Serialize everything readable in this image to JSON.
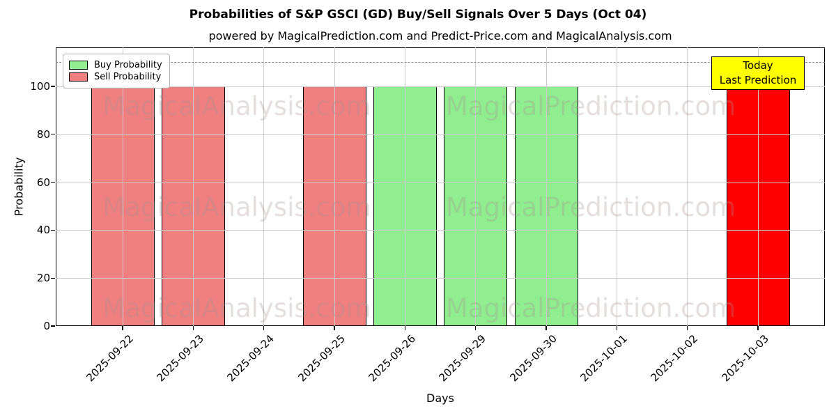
{
  "title": "Probabilities of S&P GSCI (GD) Buy/Sell Signals Over 5 Days (Oct 04)",
  "subtitle": "powered by MagicalPrediction.com and Predict-Price.com and MagicalAnalysis.com",
  "watermarks": {
    "left": "MagicalAnalysis.com",
    "right": "MagicalPrediction.com"
  },
  "legend": [
    {
      "label": "Buy Probability",
      "color": "#90ee90"
    },
    {
      "label": "Sell Probability",
      "color": "#f08080"
    }
  ],
  "annotation": {
    "line1": "Today",
    "line2": "Last Prediction",
    "bg_color": "#ffff00"
  },
  "colors": {
    "buy": "#90ee90",
    "sell": "#f08080",
    "today": "#ff0000",
    "grid": "#cccccc",
    "dashed_line": "#8a8a8a",
    "bar_edge": "#000000"
  },
  "chart_data": {
    "type": "bar",
    "title": "Probabilities of S&P GSCI (GD) Buy/Sell Signals Over 5 Days (Oct 04)",
    "subtitle": "powered by MagicalPrediction.com and Predict-Price.com and MagicalAnalysis.com",
    "xlabel": "Days",
    "ylabel": "Probability",
    "ylim": [
      0,
      116.3
    ],
    "yticks": [
      0,
      20,
      40,
      60,
      80,
      100
    ],
    "grid": true,
    "legend_position": "upper left",
    "dashed_line_y": 110,
    "categories": [
      "2025-09-22",
      "2025-09-23",
      "2025-09-24",
      "2025-09-25",
      "2025-09-26",
      "2025-09-29",
      "2025-09-30",
      "2025-10-01",
      "2025-10-02",
      "2025-10-03"
    ],
    "series": [
      {
        "name": "Buy Probability",
        "color": "#90ee90",
        "values": [
          0,
          0,
          0,
          0,
          100,
          100,
          100,
          0,
          0,
          0
        ]
      },
      {
        "name": "Sell Probability",
        "color": "#f08080",
        "values": [
          100,
          100,
          0,
          100,
          0,
          0,
          0,
          0,
          0,
          0
        ]
      },
      {
        "name": "Today Last Prediction",
        "color": "#ff0000",
        "values": [
          0,
          0,
          0,
          0,
          0,
          0,
          0,
          0,
          0,
          100
        ]
      }
    ],
    "annotation_category": "2025-10-03"
  }
}
